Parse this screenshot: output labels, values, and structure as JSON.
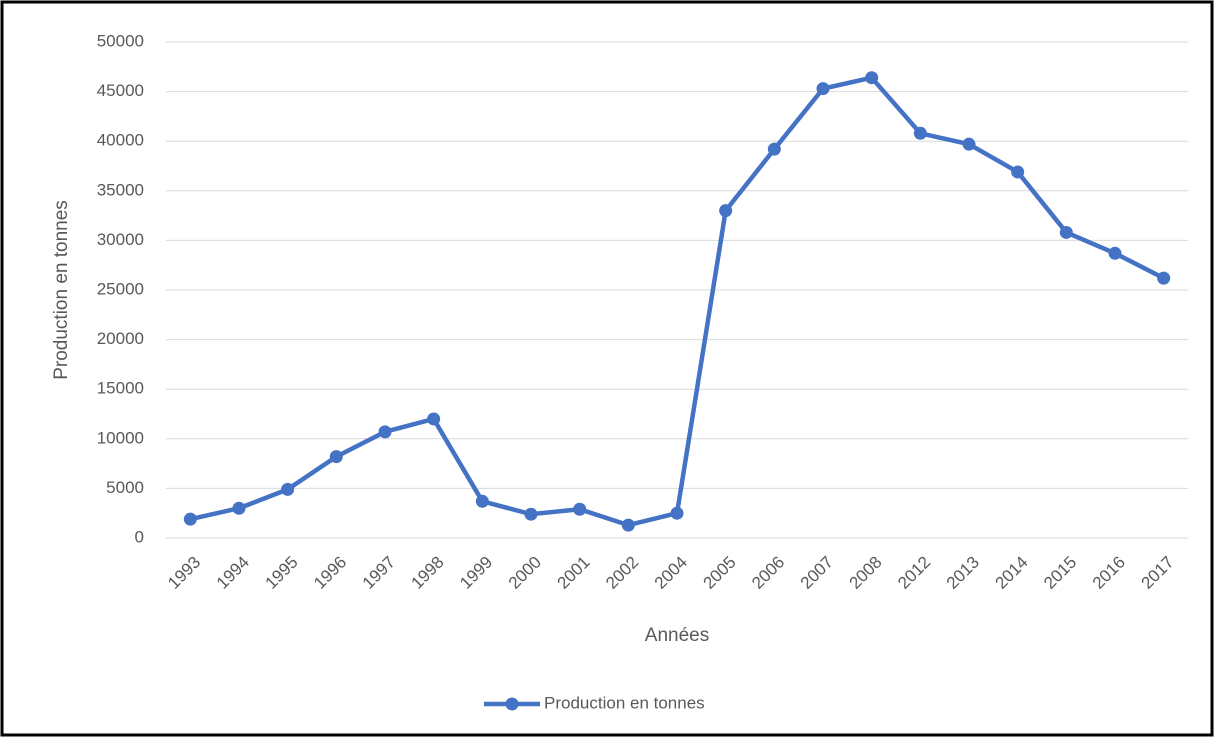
{
  "chart_data": {
    "type": "line",
    "x_label": "Années",
    "y_label": "Production en tonnes",
    "categories": [
      "1993",
      "1994",
      "1995",
      "1996",
      "1997",
      "1998",
      "1999",
      "2000",
      "2001",
      "2002",
      "2004",
      "2005",
      "2006",
      "2007",
      "2008",
      "2012",
      "2013",
      "2014",
      "2015",
      "2016",
      "2017"
    ],
    "series": [
      {
        "name": "Production en tonnes",
        "color": "#4472c4",
        "values": [
          1900,
          3000,
          4900,
          8200,
          10700,
          12000,
          3700,
          2400,
          2900,
          1300,
          2500,
          33000,
          39200,
          45300,
          46400,
          40800,
          39700,
          36900,
          30800,
          28700,
          26200
        ]
      }
    ],
    "ylim": [
      0,
      50000
    ],
    "yticks": [
      0,
      5000,
      10000,
      15000,
      20000,
      25000,
      30000,
      35000,
      40000,
      45000,
      50000
    ],
    "grid": true,
    "legend": "bottom"
  }
}
